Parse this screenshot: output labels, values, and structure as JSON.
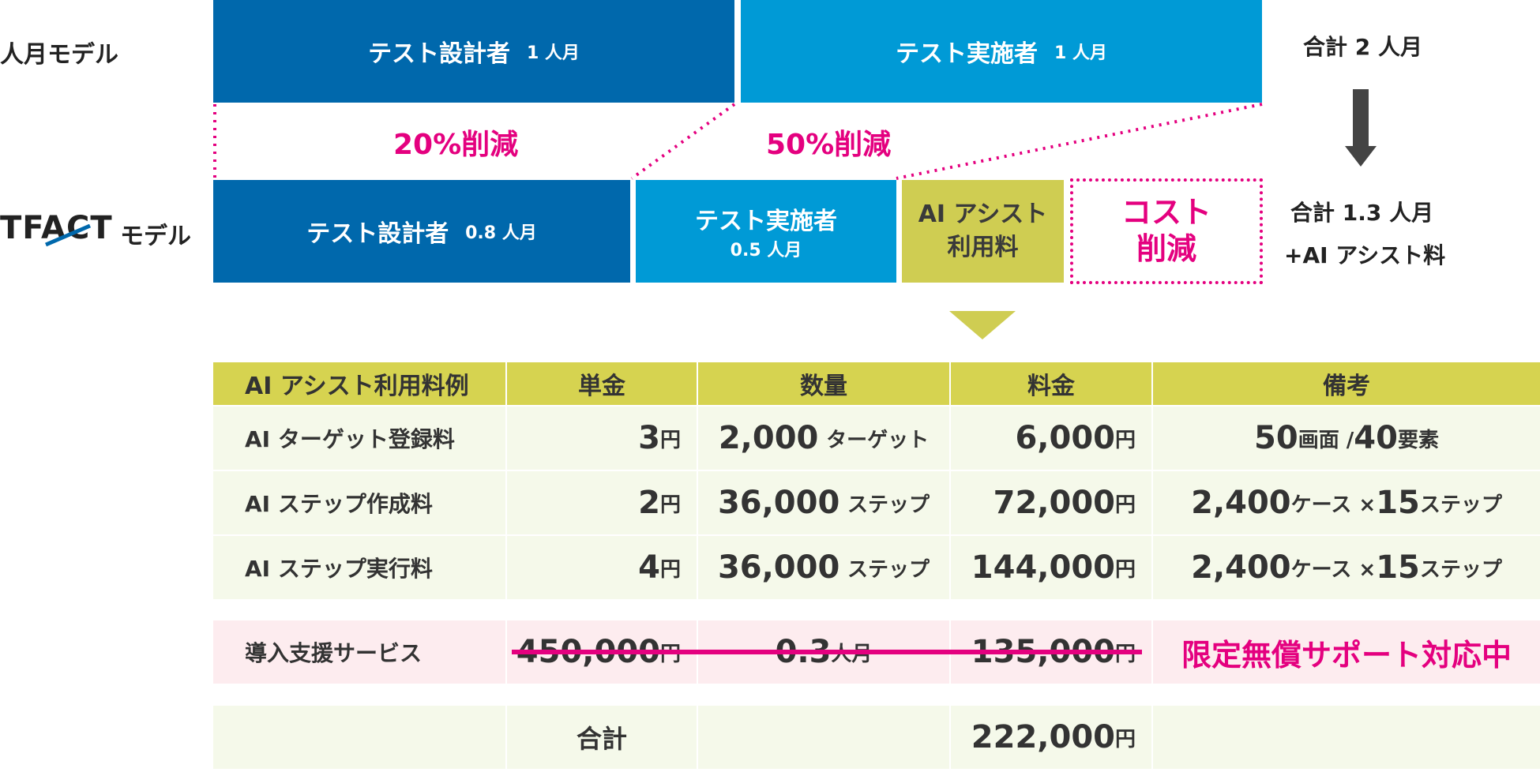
{
  "top": {
    "manmonth_label": "人月モデル",
    "designer_label": "テスト設計者",
    "designer_qty": "1 人月",
    "executor_label": "テスト実施者",
    "executor_qty": "1 人月",
    "total_label": "合計 2 人月",
    "reduction_designer": "20%削減",
    "reduction_executor": "50%削減",
    "tfact_logo": "TFACT",
    "tfact_suffix": "モデル",
    "new_designer_label": "テスト設計者",
    "new_designer_qty": "0.8 人月",
    "new_executor_label": "テスト実施者",
    "new_executor_qty": "0.5 人月",
    "ai_fee_line1": "AI アシスト",
    "ai_fee_line2": "利用料",
    "cost_line1": "コスト",
    "cost_line2": "削減",
    "new_total_line1": "合計 1.3 人月",
    "new_total_line2": "+AI アシスト料"
  },
  "table": {
    "headers": [
      "AI アシスト利用料例",
      "単金",
      "数量",
      "料金",
      "備考"
    ],
    "rows": [
      {
        "name": "AI ターゲット登録料",
        "unit_num": "3",
        "unit_yen": "円",
        "qty_num": "2,000",
        "qty_unit": "ターゲット",
        "fee_num": "6,000",
        "fee_yen": "円",
        "note_a": "50",
        "note_b": "画面 / ",
        "note_c": "40",
        "note_d": "要素"
      },
      {
        "name": "AI ステップ作成料",
        "unit_num": "2",
        "unit_yen": "円",
        "qty_num": "36,000",
        "qty_unit": "ステップ",
        "fee_num": "72,000",
        "fee_yen": "円",
        "note_a": "2,400",
        "note_b": "ケース × ",
        "note_c": "15",
        "note_d": "ステップ"
      },
      {
        "name": "AI ステップ実行料",
        "unit_num": "4",
        "unit_yen": "円",
        "qty_num": "36,000",
        "qty_unit": "ステップ",
        "fee_num": "144,000",
        "fee_yen": "円",
        "note_a": "2,400",
        "note_b": "ケース × ",
        "note_c": "15",
        "note_d": "ステップ"
      }
    ],
    "support": {
      "name": "導入支援サービス",
      "unit_num": "450,000",
      "unit_yen": "円",
      "qty_num": "0.3",
      "qty_unit": "人月",
      "fee_num": "135,000",
      "fee_yen": "円",
      "note": "限定無償サポート対応中"
    },
    "total": {
      "label": "合計",
      "fee_num": "222,000",
      "fee_yen": "円"
    }
  },
  "colors": {
    "dark_blue": "#0068ac",
    "light_blue": "#009ad6",
    "olive": "#cfcd52",
    "accent_pink": "#e4007f"
  }
}
